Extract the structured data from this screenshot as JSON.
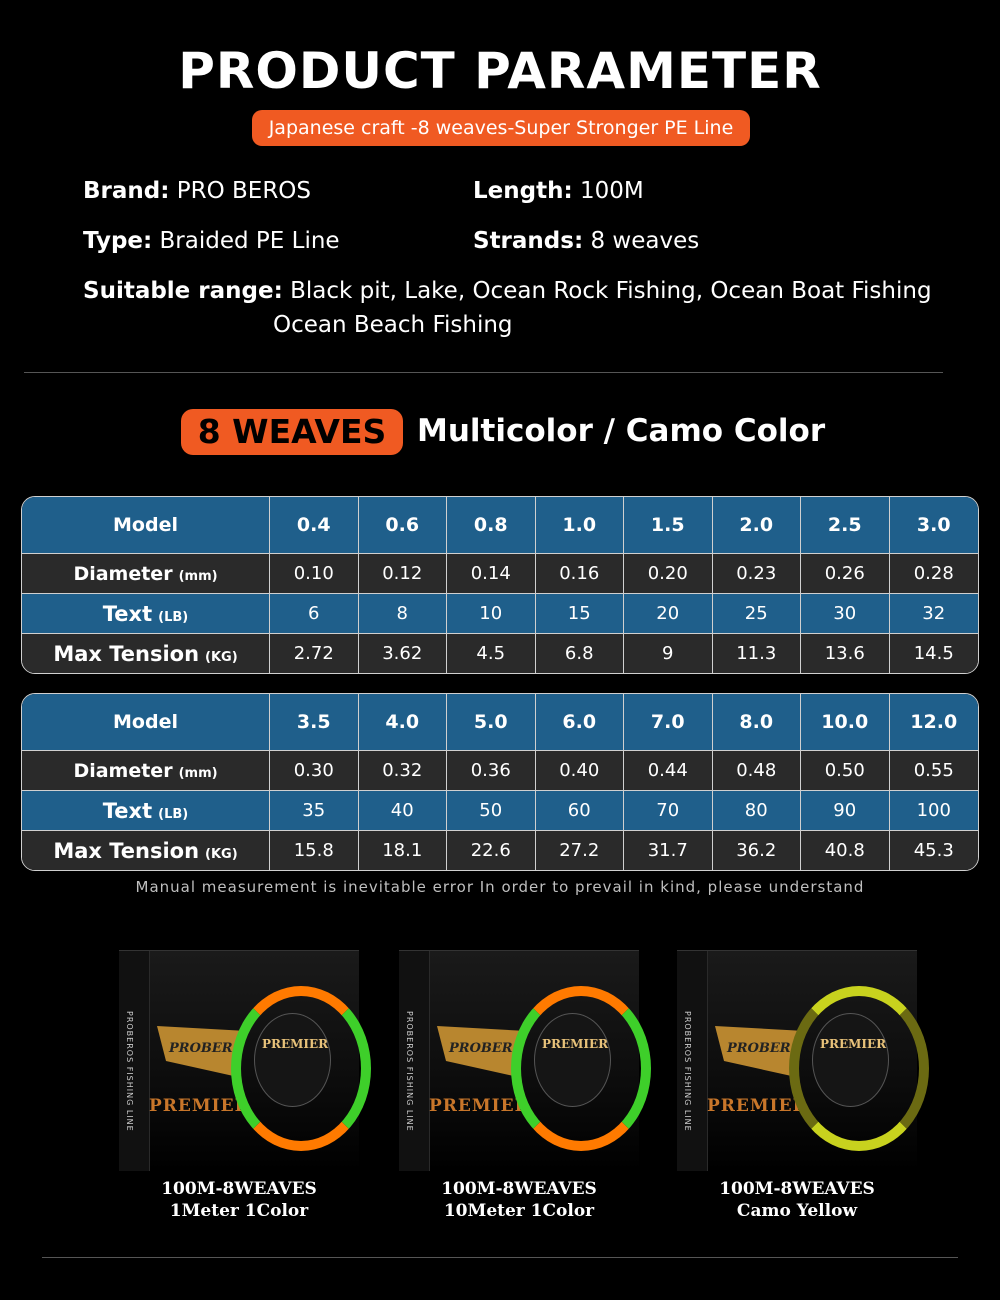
{
  "header": {
    "title": "PRODUCT PARAMETER",
    "subtitle": "Japanese craft -8 weaves-Super Stronger PE Line"
  },
  "specs": {
    "brand_label": "Brand:",
    "brand_value": "PRO BEROS",
    "length_label": "Length:",
    "length_value": "100M",
    "type_label": "Type:",
    "type_value": "Braided PE Line",
    "strands_label": "Strands:",
    "strands_value": "8 weaves",
    "range_label": "Suitable range:",
    "range_value_line1": "Black pit, Lake, Ocean Rock Fishing, Ocean Boat Fishing",
    "range_value_line2": "Ocean Beach Fishing"
  },
  "section": {
    "weaves_badge": "8 WEAVES",
    "weaves_title": "Multicolor / Camo Color"
  },
  "row_labels": {
    "model": "Model",
    "diameter": "Diameter",
    "diameter_unit": "(mm)",
    "text": "Text",
    "text_unit": "(LB)",
    "tension": "Max Tension",
    "tension_unit": "(KG)"
  },
  "table1": {
    "model": [
      "0.4",
      "0.6",
      "0.8",
      "1.0",
      "1.5",
      "2.0",
      "2.5",
      "3.0"
    ],
    "diameter": [
      "0.10",
      "0.12",
      "0.14",
      "0.16",
      "0.20",
      "0.23",
      "0.26",
      "0.28"
    ],
    "text": [
      "6",
      "8",
      "10",
      "15",
      "20",
      "25",
      "30",
      "32"
    ],
    "tension": [
      "2.72",
      "3.62",
      "4.5",
      "6.8",
      "9",
      "11.3",
      "13.6",
      "14.5"
    ]
  },
  "table2": {
    "model": [
      "3.5",
      "4.0",
      "5.0",
      "6.0",
      "7.0",
      "8.0",
      "10.0",
      "12.0"
    ],
    "diameter": [
      "0.30",
      "0.32",
      "0.36",
      "0.40",
      "0.44",
      "0.48",
      "0.50",
      "0.55"
    ],
    "text": [
      "35",
      "40",
      "50",
      "60",
      "70",
      "80",
      "90",
      "100"
    ],
    "tension": [
      "15.8",
      "18.1",
      "22.6",
      "27.2",
      "31.7",
      "36.2",
      "40.8",
      "45.3"
    ]
  },
  "note": "Manual measurement is inevitable error In order to prevail in kind, please understand",
  "products": [
    {
      "box_side_text": "PROBEROS FISHING LINE",
      "brand": "PROBER",
      "premier": "PREMIER",
      "spool_label": "PREMIER",
      "caption_line1": "100M-8WEAVES",
      "caption_line2": "1Meter 1Color",
      "spool_colors": [
        "#ff7a00",
        "#3ecf2a"
      ]
    },
    {
      "box_side_text": "PROBEROS FISHING LINE",
      "brand": "PROBER",
      "premier": "PREMIER",
      "spool_label": "PREMIER",
      "caption_line1": "100M-8WEAVES",
      "caption_line2": "10Meter 1Color",
      "spool_colors": [
        "#ff7a00",
        "#3ecf2a"
      ]
    },
    {
      "box_side_text": "PROBEROS FISHING LINE",
      "brand": "PROBER",
      "premier": "PREMIER",
      "spool_label": "PREMIER",
      "caption_line1": "100M-8WEAVES",
      "caption_line2": "Camo Yellow",
      "spool_colors": [
        "#c8d21e",
        "#6b6a12"
      ]
    }
  ],
  "colors": {
    "accent_orange": "#f05a22",
    "table_blue": "#1f5f8b",
    "table_dark": "#2a2a2a"
  }
}
